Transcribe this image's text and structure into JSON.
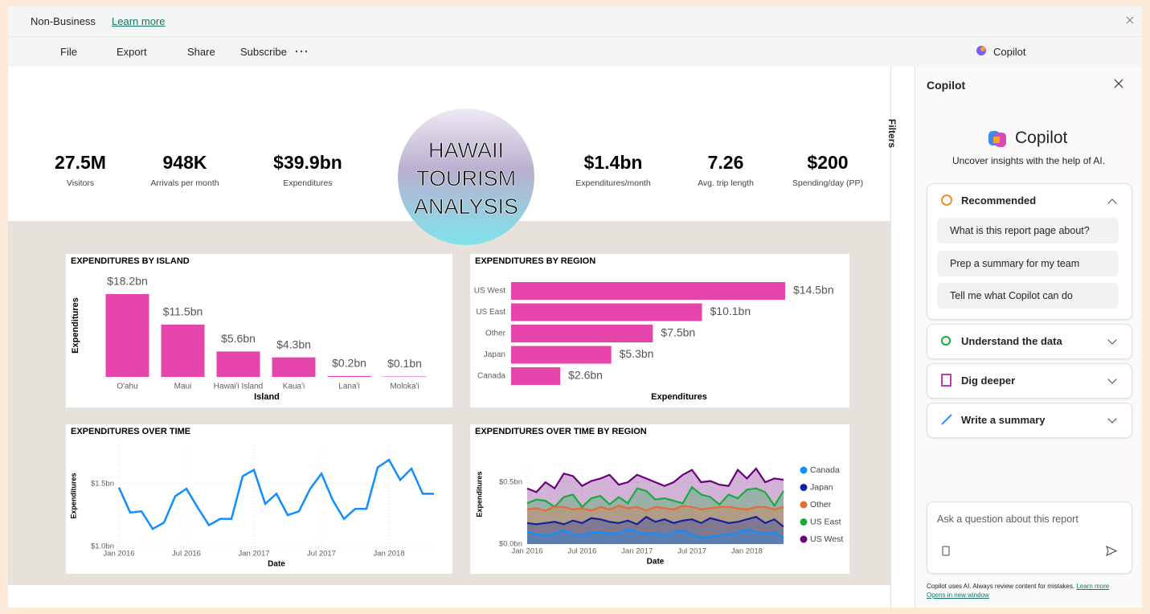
{
  "header": {
    "workspace": "Non-Business",
    "link": "Learn more"
  },
  "toolbar": {
    "file": "File",
    "export": "Export",
    "share": "Share",
    "subscribe": "Subscribe",
    "copilot": "Copilot"
  },
  "filters": "Filters",
  "kpis": [
    {
      "value": "27.5M",
      "label": "Visitors"
    },
    {
      "value": "948K",
      "label": "Arrivals per month"
    },
    {
      "value": "$39.9bn",
      "label": "Expenditures"
    },
    {
      "value": "$1.4bn",
      "label": "Expenditures/month"
    },
    {
      "value": "7.26",
      "label": "Avg. trip length"
    },
    {
      "value": "$200",
      "label": "Spending/day (PP)"
    }
  ],
  "banner": {
    "lines": [
      "HAWAII",
      "TOURISM",
      "ANALYSIS"
    ]
  },
  "chart_data": [
    {
      "type": "bar",
      "title": "EXPENDITURES BY ISLAND",
      "ylabel": "Expenditures",
      "xlabel": "Island",
      "color": "#e645ab",
      "categories": [
        "O'ahu",
        "Maui",
        "Hawai'i Island",
        "Kaua'i",
        "Lana'i",
        "Moloka'i"
      ],
      "values": [
        18.2,
        11.5,
        5.6,
        4.3,
        0.2,
        0.1
      ],
      "value_labels": [
        "$18.2bn",
        "$11.5bn",
        "$5.6bn",
        "$4.3bn",
        "$0.2bn",
        "$0.1bn"
      ]
    },
    {
      "type": "hbar",
      "title": "EXPENDITURES BY REGION",
      "xlabel": "Expenditures",
      "color": "#e645ab",
      "categories": [
        "US West",
        "US East",
        "Other",
        "Japan",
        "Canada"
      ],
      "values": [
        14.5,
        10.1,
        7.5,
        5.3,
        2.6
      ],
      "value_labels": [
        "$14.5bn",
        "$10.1bn",
        "$7.5bn",
        "$5.3bn",
        "$2.6bn"
      ]
    },
    {
      "type": "line",
      "title": "EXPENDITURES OVER TIME",
      "ylabel": "Expenditures",
      "xlabel": "Date",
      "color": "#118dff",
      "grid": true,
      "x": [
        "2016-01",
        "2016-02",
        "2016-03",
        "2016-04",
        "2016-05",
        "2016-06",
        "2016-07",
        "2016-08",
        "2016-09",
        "2016-10",
        "2016-11",
        "2016-12",
        "2017-01",
        "2017-02",
        "2017-03",
        "2017-04",
        "2017-05",
        "2017-06",
        "2017-07",
        "2017-08",
        "2017-09",
        "2017-10",
        "2017-11",
        "2017-12",
        "2018-01",
        "2018-02",
        "2018-03",
        "2018-04",
        "2018-05"
      ],
      "values": [
        1.47,
        1.27,
        1.28,
        1.14,
        1.19,
        1.4,
        1.46,
        1.31,
        1.17,
        1.22,
        1.22,
        1.56,
        1.61,
        1.34,
        1.42,
        1.25,
        1.28,
        1.46,
        1.58,
        1.37,
        1.22,
        1.3,
        1.3,
        1.63,
        1.69,
        1.53,
        1.62,
        1.42,
        1.42
      ],
      "xlim": [
        "2016-01",
        "2018-05"
      ],
      "xticks": [
        {
          "value": "2016-01",
          "label": "Jan 2016"
        },
        {
          "value": "2016-07",
          "label": "Jul 2016"
        },
        {
          "value": "2017-01",
          "label": "Jan 2017"
        },
        {
          "value": "2017-07",
          "label": "Jul 2017"
        },
        {
          "value": "2018-01",
          "label": "Jan 2018"
        }
      ],
      "ylim": [
        1.0,
        1.8
      ],
      "yticks": [
        {
          "value": 1.0,
          "label": "$1.0bn"
        },
        {
          "value": 1.5,
          "label": "$1.5bn"
        }
      ]
    },
    {
      "type": "area",
      "title": "EXPENDITURES OVER TIME BY REGION",
      "ylabel": "Expenditures",
      "xlabel": "Date",
      "grid": true,
      "x": [
        "2016-01",
        "2016-02",
        "2016-03",
        "2016-04",
        "2016-05",
        "2016-06",
        "2016-07",
        "2016-08",
        "2016-09",
        "2016-10",
        "2016-11",
        "2016-12",
        "2017-01",
        "2017-02",
        "2017-03",
        "2017-04",
        "2017-05",
        "2017-06",
        "2017-07",
        "2017-08",
        "2017-09",
        "2017-10",
        "2017-11",
        "2017-12",
        "2018-01",
        "2018-02",
        "2018-03",
        "2018-04",
        "2018-05"
      ],
      "xlim": [
        "2016-01",
        "2018-05"
      ],
      "xticks": [
        {
          "value": "2016-01",
          "label": "Jan 2016"
        },
        {
          "value": "2016-07",
          "label": "Jul 2016"
        },
        {
          "value": "2017-01",
          "label": "Jan 2017"
        },
        {
          "value": "2017-07",
          "label": "Jul 2017"
        },
        {
          "value": "2018-01",
          "label": "Jan 2018"
        }
      ],
      "ylim": [
        0,
        0.63
      ],
      "yticks": [
        {
          "value": 0,
          "label": "$0.0bn"
        },
        {
          "value": 0.5,
          "label": "$0.5bn"
        }
      ],
      "series": [
        {
          "name": "Canada",
          "color": "#118dff",
          "values": [
            0.1,
            0.08,
            0.07,
            0.09,
            0.11,
            0.08,
            0.07,
            0.09,
            0.1,
            0.08,
            0.09,
            0.12,
            0.1,
            0.08,
            0.09,
            0.07,
            0.1,
            0.11,
            0.08,
            0.05,
            0.06,
            0.07,
            0.08,
            0.09,
            0.12,
            0.1,
            0.08,
            0.1,
            0.05
          ]
        },
        {
          "name": "Japan",
          "color": "#12239e",
          "values": [
            0.17,
            0.16,
            0.17,
            0.18,
            0.16,
            0.19,
            0.17,
            0.21,
            0.2,
            0.18,
            0.17,
            0.19,
            0.16,
            0.22,
            0.18,
            0.2,
            0.17,
            0.19,
            0.2,
            0.17,
            0.21,
            0.19,
            0.17,
            0.18,
            0.2,
            0.22,
            0.17,
            0.2,
            0.14
          ]
        },
        {
          "name": "Other",
          "color": "#e66c37",
          "values": [
            0.28,
            0.29,
            0.27,
            0.3,
            0.3,
            0.28,
            0.29,
            0.27,
            0.3,
            0.28,
            0.31,
            0.29,
            0.3,
            0.27,
            0.3,
            0.29,
            0.28,
            0.31,
            0.3,
            0.28,
            0.29,
            0.3,
            0.3,
            0.29,
            0.28,
            0.3,
            0.3,
            0.28,
            0.3
          ]
        },
        {
          "name": "US East",
          "color": "#1aab40",
          "values": [
            0.33,
            0.36,
            0.35,
            0.3,
            0.38,
            0.4,
            0.3,
            0.37,
            0.39,
            0.32,
            0.38,
            0.33,
            0.45,
            0.43,
            0.36,
            0.37,
            0.35,
            0.33,
            0.46,
            0.4,
            0.38,
            0.32,
            0.4,
            0.37,
            0.44,
            0.45,
            0.42,
            0.31,
            0.43
          ]
        },
        {
          "name": "US West",
          "color": "#6b007b",
          "values": [
            0.45,
            0.42,
            0.5,
            0.45,
            0.57,
            0.55,
            0.47,
            0.51,
            0.53,
            0.56,
            0.48,
            0.5,
            0.56,
            0.53,
            0.5,
            0.47,
            0.5,
            0.56,
            0.6,
            0.5,
            0.51,
            0.48,
            0.47,
            0.6,
            0.53,
            0.61,
            0.5,
            0.53,
            0.52
          ]
        }
      ]
    }
  ],
  "copilot": {
    "header": "Copilot",
    "brand": "Copilot",
    "subtitle": "Uncover insights with the help of AI.",
    "recommended": "Recommended",
    "prompts": [
      "What is this report page about?",
      "Prep a summary for my team",
      "Tell me what Copilot can do"
    ],
    "sections": [
      "Understand the data",
      "Dig deeper",
      "Write a summary"
    ],
    "placeholder": "Ask a question about this report",
    "footer": "Copilot uses AI. Always review content for mistakes.",
    "footer_link": "Learn more",
    "footer_link2": "Opens in new window"
  }
}
